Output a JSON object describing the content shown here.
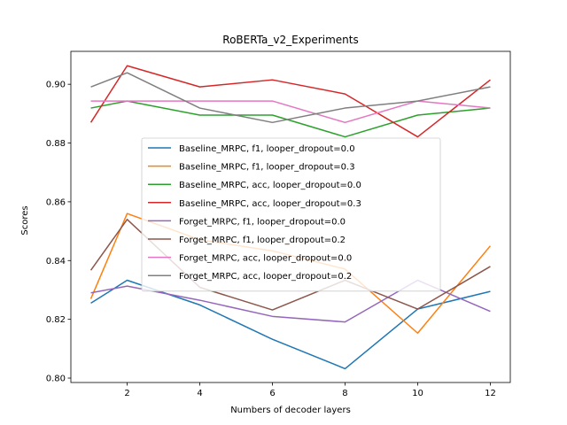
{
  "chart_data": {
    "type": "line",
    "title": "RoBERTa_v2_Experiments",
    "xlabel": "Numbers of decoder layers",
    "ylabel": "Scores",
    "x": [
      1,
      2,
      4,
      6,
      8,
      10,
      12
    ],
    "x_ticks": [
      2,
      4,
      6,
      8,
      10,
      12
    ],
    "y_ticks": [
      0.8,
      0.82,
      0.84,
      0.86,
      0.88,
      0.9
    ],
    "xlim": [
      0.45,
      12.55
    ],
    "ylim": [
      0.7985,
      0.9112
    ],
    "legend_position": "center-left",
    "grid": false,
    "series": [
      {
        "name": "Baseline_MRPC, f1, looper_dropout=0.0",
        "color": "#1f77b4",
        "values": [
          0.8255,
          0.8333,
          0.8249,
          0.8132,
          0.8032,
          0.8235,
          0.8295
        ]
      },
      {
        "name": "Baseline_MRPC, f1, looper_dropout=0.3",
        "color": "#ff7f0e",
        "values": [
          0.827,
          0.856,
          0.8471,
          0.8433,
          0.8371,
          0.8153,
          0.845
        ]
      },
      {
        "name": "Baseline_MRPC, acc, looper_dropout=0.0",
        "color": "#2ca02c",
        "values": [
          0.8919,
          0.8943,
          0.8895,
          0.8895,
          0.8821,
          0.8895,
          0.8919
        ]
      },
      {
        "name": "Baseline_MRPC, acc, looper_dropout=0.3",
        "color": "#d62728",
        "values": [
          0.887,
          0.9063,
          0.8991,
          0.9015,
          0.8967,
          0.8821,
          0.9015
        ]
      },
      {
        "name": "Forget_MRPC, f1, looper_dropout=0.0",
        "color": "#9467bd",
        "values": [
          0.829,
          0.8313,
          0.8265,
          0.821,
          0.8191,
          0.8333,
          0.8227
        ]
      },
      {
        "name": "Forget_MRPC, f1, looper_dropout=0.2",
        "color": "#8c564b",
        "values": [
          0.8367,
          0.854,
          0.8309,
          0.8232,
          0.8333,
          0.8235,
          0.838
        ]
      },
      {
        "name": "Forget_MRPC, acc, looper_dropout=0.0",
        "color": "#e377c2",
        "values": [
          0.8943,
          0.8943,
          0.8943,
          0.8943,
          0.887,
          0.8943,
          0.8919
        ]
      },
      {
        "name": "Forget_MRPC, acc, looper_dropout=0.2",
        "color": "#7f7f7f",
        "values": [
          0.8991,
          0.9039,
          0.8919,
          0.887,
          0.8919,
          0.8943,
          0.8991
        ]
      }
    ]
  }
}
